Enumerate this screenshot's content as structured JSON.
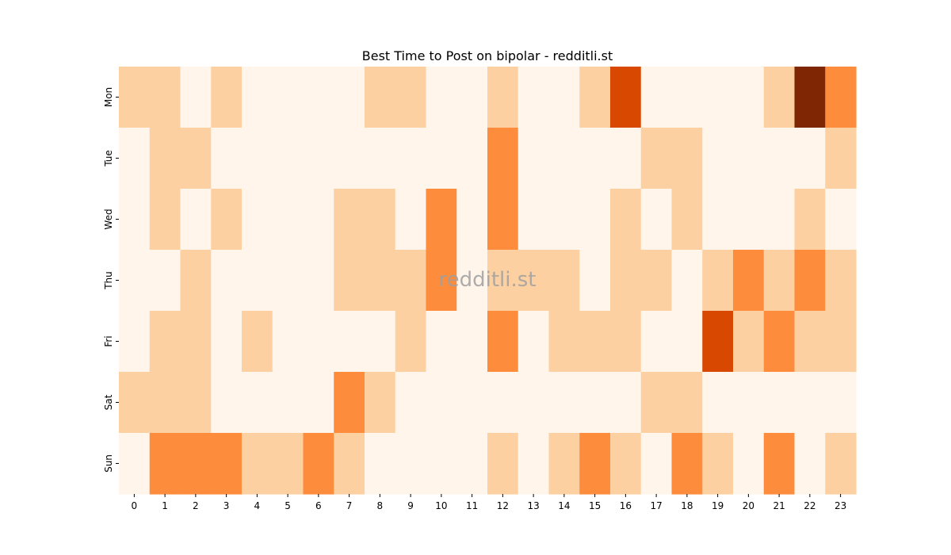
{
  "chart_data": {
    "type": "heatmap",
    "title": "Best Time to Post on bipolar - redditli.st",
    "xlabel": "",
    "ylabel": "",
    "watermark": "redditli.st",
    "x_categories": [
      "0",
      "1",
      "2",
      "3",
      "4",
      "5",
      "6",
      "7",
      "8",
      "9",
      "10",
      "11",
      "12",
      "13",
      "14",
      "15",
      "16",
      "17",
      "18",
      "19",
      "20",
      "21",
      "22",
      "23"
    ],
    "y_categories": [
      "Mon",
      "Tue",
      "Wed",
      "Thu",
      "Fri",
      "Sat",
      "Sun"
    ],
    "values": [
      [
        1,
        1,
        0,
        1,
        0,
        0,
        0,
        0,
        1,
        1,
        0,
        0,
        1,
        0,
        0,
        1,
        4,
        0,
        0,
        0,
        0,
        1,
        5,
        2
      ],
      [
        0,
        1,
        1,
        0,
        0,
        0,
        0,
        0,
        0,
        0,
        0,
        0,
        2,
        0,
        0,
        0,
        0,
        1,
        1,
        0,
        0,
        0,
        0,
        1
      ],
      [
        0,
        1,
        0,
        1,
        0,
        0,
        0,
        1,
        1,
        0,
        2,
        0,
        2,
        0,
        0,
        0,
        1,
        0,
        1,
        0,
        0,
        0,
        1,
        0
      ],
      [
        0,
        0,
        1,
        0,
        0,
        0,
        0,
        1,
        1,
        1,
        2,
        0,
        1,
        1,
        1,
        0,
        1,
        1,
        0,
        1,
        2,
        1,
        2,
        1
      ],
      [
        0,
        1,
        1,
        0,
        1,
        0,
        0,
        0,
        0,
        1,
        0,
        0,
        2,
        0,
        1,
        1,
        1,
        0,
        0,
        4,
        1,
        2,
        1,
        1
      ],
      [
        1,
        1,
        1,
        0,
        0,
        0,
        0,
        2,
        1,
        0,
        0,
        0,
        0,
        0,
        0,
        0,
        0,
        1,
        1,
        0,
        0,
        0,
        0,
        0
      ],
      [
        0,
        2,
        2,
        2,
        1,
        1,
        2,
        1,
        0,
        0,
        0,
        0,
        1,
        0,
        1,
        2,
        1,
        0,
        2,
        1,
        0,
        2,
        0,
        1
      ]
    ],
    "colormap": "Oranges",
    "level_colors": [
      "#fff5eb",
      "#fdd0a2",
      "#fd8d3c",
      "#fd8d3c",
      "#d94801",
      "#7f2704"
    ]
  }
}
